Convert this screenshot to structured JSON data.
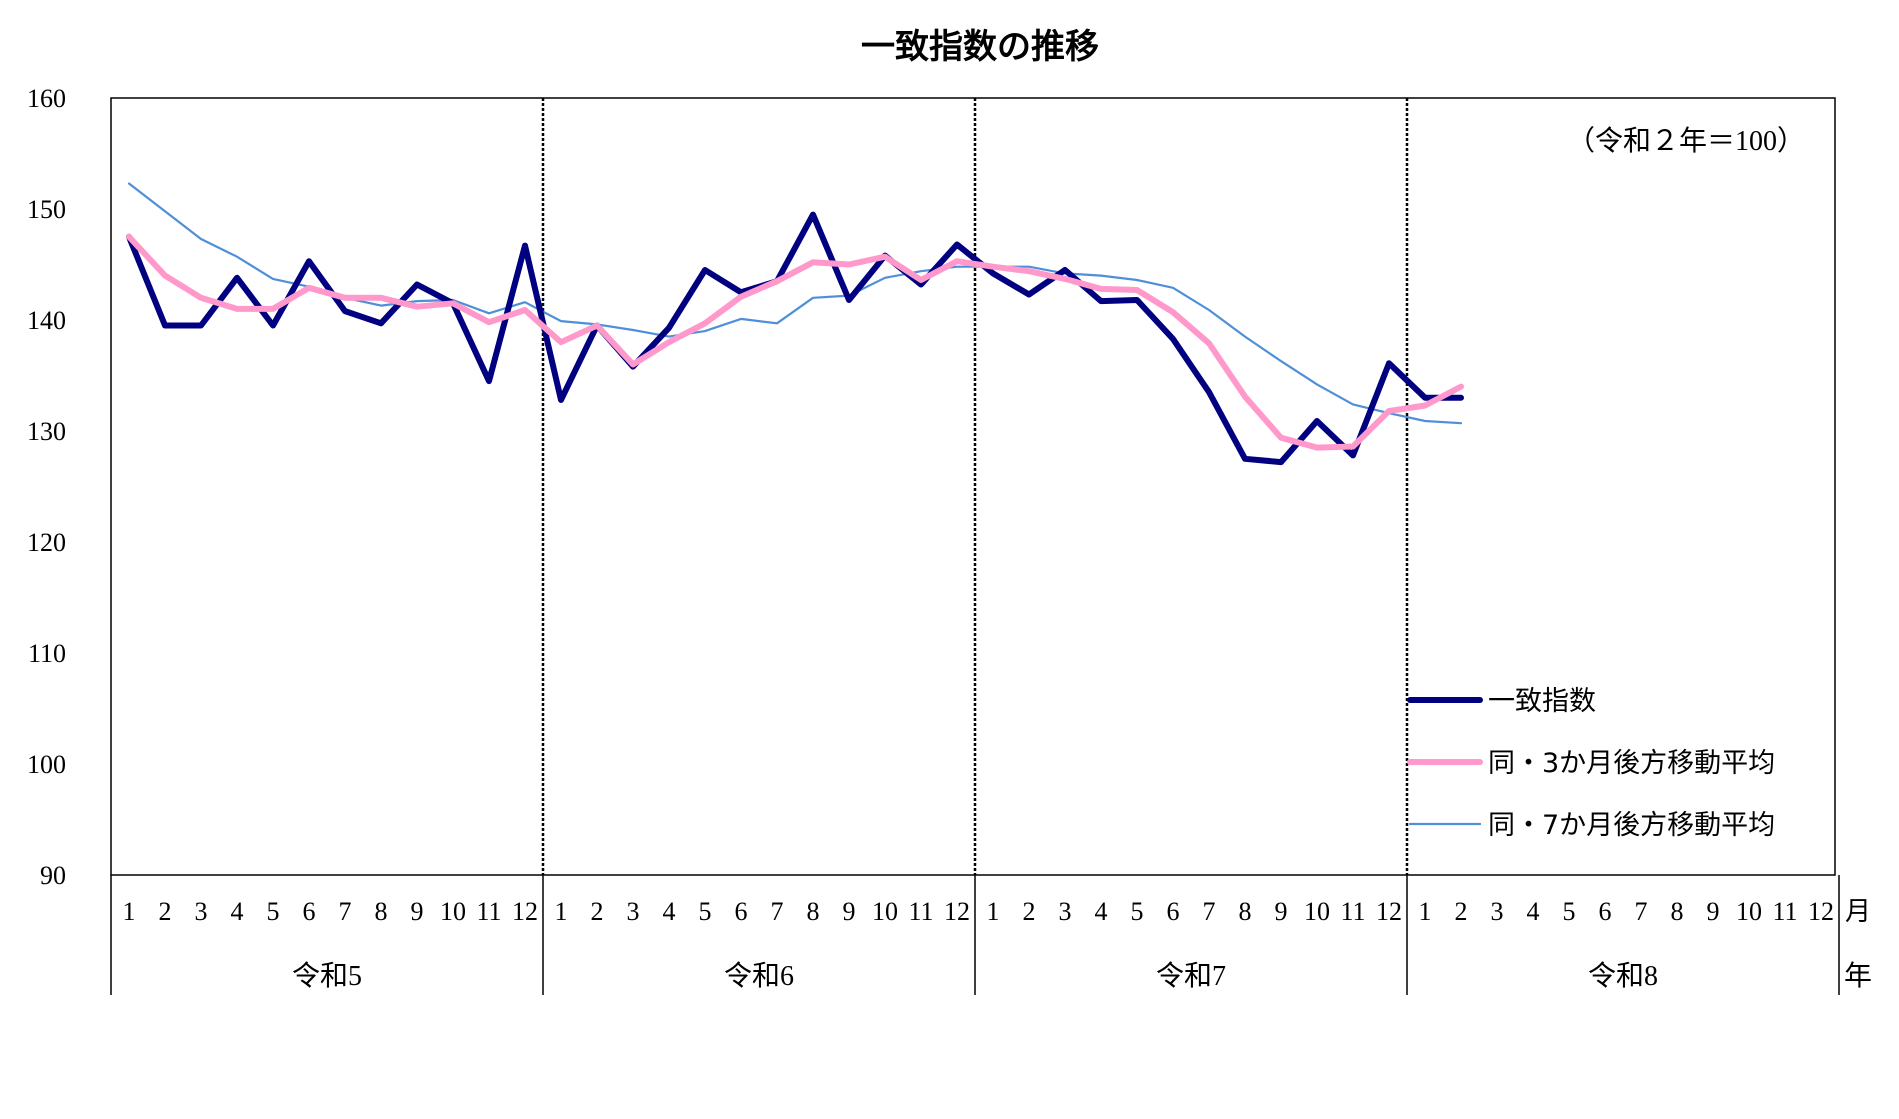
{
  "chart_data": {
    "type": "line",
    "title": "一致指数の推移",
    "annotation": "（令和２年＝100）",
    "ylim": [
      90,
      160
    ],
    "yticks": [
      90,
      100,
      110,
      120,
      130,
      140,
      150,
      160
    ],
    "month_labels": [
      "1",
      "2",
      "3",
      "4",
      "5",
      "6",
      "7",
      "8",
      "9",
      "10",
      "11",
      "12"
    ],
    "month_axis_label": "月",
    "year_axis_label": "年",
    "years": [
      "令和5",
      "令和6",
      "令和7",
      "令和8"
    ],
    "colors": {
      "main": "#000080",
      "ma3": "#ff99cc",
      "ma7": "#4f8fd8",
      "divider": "#000000",
      "frame": "#000000"
    },
    "series": [
      {
        "name": "一致指数",
        "values": [
          147.5,
          139.5,
          139.5,
          143.8,
          139.5,
          145.3,
          140.8,
          139.7,
          143.2,
          141.5,
          134.5,
          146.7,
          132.8,
          139.5,
          135.8,
          139.3,
          144.5,
          142.5,
          143.5,
          149.5,
          141.8,
          145.8,
          143.2,
          146.8,
          144.2,
          142.3,
          144.5,
          141.7,
          141.8,
          138.3,
          133.5,
          127.5,
          127.2,
          130.9,
          127.8,
          136.1,
          133.0,
          133.0
        ]
      },
      {
        "name": "同・3か月後方移動平均",
        "values": [
          147.5,
          144.0,
          142.0,
          141.0,
          141.0,
          142.9,
          142.0,
          142.0,
          141.2,
          141.5,
          139.8,
          140.9,
          138.0,
          139.5,
          136.0,
          138.0,
          139.7,
          142.1,
          143.5,
          145.2,
          145.0,
          145.7,
          143.6,
          145.3,
          144.8,
          144.4,
          143.7,
          142.8,
          142.7,
          140.7,
          137.9,
          133.1,
          129.4,
          128.5,
          128.6,
          131.8,
          132.3,
          134.0
        ]
      },
      {
        "name": "同・7か月後方移動平均",
        "values": [
          152.3,
          149.8,
          147.3,
          145.7,
          143.7,
          143.0,
          142.0,
          141.3,
          141.7,
          141.8,
          140.6,
          141.6,
          139.9,
          139.6,
          139.1,
          138.5,
          139.0,
          140.1,
          139.7,
          142.0,
          142.2,
          143.8,
          144.4,
          144.8,
          144.8,
          144.8,
          144.2,
          144.0,
          143.6,
          142.9,
          140.9,
          138.5,
          136.3,
          134.2,
          132.4,
          131.6,
          130.9,
          130.7
        ]
      }
    ],
    "legend": [
      "一致指数",
      "同・3か月後方移動平均",
      "同・7か月後方移動平均"
    ],
    "legend_position": "bottom-right",
    "grid": false
  }
}
